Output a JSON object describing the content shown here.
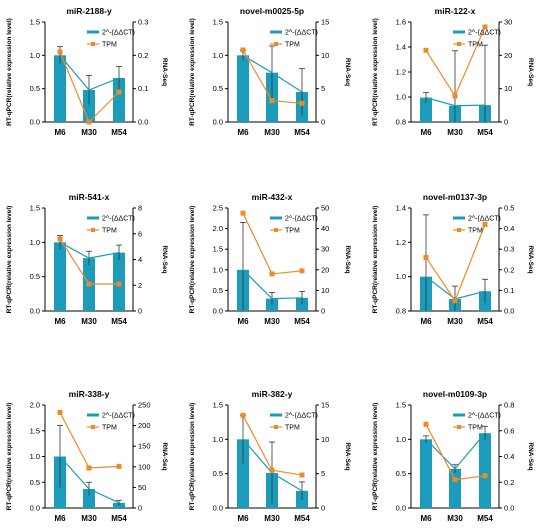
{
  "colors": {
    "bar": "#1a9cba",
    "tpm": "#f08a28",
    "axis": "#000000",
    "error": "#333333"
  },
  "legend": {
    "bar_label": "2^-(ΔΔCT)",
    "line_label": "TPM"
  },
  "chart_data": [
    {
      "type": "bar",
      "title": "miR-2188-y",
      "categories": [
        "M6",
        "M30",
        "M54"
      ],
      "ylabel": "RT-qPCR(relative expression level)",
      "y2label": "RNA-Seq",
      "ylim": [
        0,
        1.5
      ],
      "yticks": [
        0.0,
        0.5,
        1.0,
        1.5
      ],
      "y2lim": [
        0,
        0.3
      ],
      "y2ticks": [
        0.0,
        0.1,
        0.2,
        0.3
      ],
      "legend_position": "top-right",
      "series": [
        {
          "name": "2^-(ΔΔCT)",
          "axis": "left",
          "values": [
            1.0,
            0.48,
            0.66
          ],
          "errors": [
            0.13,
            0.22,
            0.17
          ]
        },
        {
          "name": "TPM",
          "axis": "right",
          "values": [
            0.21,
            0.0,
            0.09
          ]
        }
      ]
    },
    {
      "type": "bar",
      "title": "novel-m0025-5p",
      "categories": [
        "M6",
        "M30",
        "M54"
      ],
      "ylabel": "RT-qPCR(relative expression level)",
      "y2label": "RNA-Seq",
      "ylim": [
        0,
        1.5
      ],
      "yticks": [
        0.0,
        0.5,
        1.0,
        1.5
      ],
      "y2lim": [
        0,
        15
      ],
      "y2ticks": [
        0,
        5,
        10,
        15
      ],
      "legend_position": "top-right",
      "series": [
        {
          "name": "2^-(ΔΔCT)",
          "axis": "left",
          "values": [
            1.0,
            0.74,
            0.45
          ],
          "errors": [
            0.08,
            0.4,
            0.35
          ]
        },
        {
          "name": "TPM",
          "axis": "right",
          "values": [
            10.8,
            3.2,
            2.8
          ]
        }
      ]
    },
    {
      "type": "bar",
      "title": "miR-122-x",
      "categories": [
        "M6",
        "M30",
        "M54"
      ],
      "ylabel": "RT-qPCR(relative expression level)",
      "y2label": "RNA-Seq",
      "ylim": [
        0.8,
        1.6
      ],
      "yticks": [
        0.8,
        1.0,
        1.2,
        1.4,
        1.6
      ],
      "y2lim": [
        0,
        30
      ],
      "y2ticks": [
        0,
        10,
        20,
        30
      ],
      "legend_position": "top-right",
      "series": [
        {
          "name": "2^-(ΔΔCT)",
          "axis": "left",
          "values": [
            0.995,
            0.93,
            0.935
          ],
          "errors": [
            0.04,
            0.44,
            0.48
          ]
        },
        {
          "name": "TPM",
          "axis": "right",
          "values": [
            21.5,
            7.8,
            28.5
          ]
        }
      ]
    },
    {
      "type": "bar",
      "title": "miR-541-x",
      "categories": [
        "M6",
        "M30",
        "M54"
      ],
      "ylabel": "RT-qPCR(relative expression level)",
      "y2label": "RNA-Seq",
      "ylim": [
        0,
        1.5
      ],
      "yticks": [
        0.0,
        0.5,
        1.0,
        1.5
      ],
      "y2lim": [
        0,
        8
      ],
      "y2ticks": [
        0,
        2,
        4,
        6,
        8
      ],
      "legend_position": "top-right",
      "series": [
        {
          "name": "2^-(ΔΔCT)",
          "axis": "left",
          "values": [
            1.0,
            0.77,
            0.85
          ],
          "errors": [
            0.1,
            0.1,
            0.11
          ]
        },
        {
          "name": "TPM",
          "axis": "right",
          "values": [
            5.6,
            2.1,
            2.1
          ]
        }
      ]
    },
    {
      "type": "bar",
      "title": "miR-432-x",
      "categories": [
        "M6",
        "M30",
        "M54"
      ],
      "ylabel": "RT-qPCR(relative expression level)",
      "y2label": "RNA-Seq",
      "ylim": [
        0,
        2.5
      ],
      "yticks": [
        0.0,
        0.5,
        1.0,
        1.5,
        2.0,
        2.5
      ],
      "y2lim": [
        0,
        50
      ],
      "y2ticks": [
        0,
        10,
        20,
        30,
        40,
        50
      ],
      "legend_position": "top-right",
      "series": [
        {
          "name": "2^-(ΔΔCT)",
          "axis": "left",
          "values": [
            1.0,
            0.3,
            0.32
          ],
          "errors": [
            1.15,
            0.15,
            0.15
          ]
        },
        {
          "name": "TPM",
          "axis": "right",
          "values": [
            47.5,
            18.0,
            19.5
          ]
        }
      ]
    },
    {
      "type": "bar",
      "title": "novel-m0137-3p",
      "categories": [
        "M6",
        "M30",
        "M54"
      ],
      "ylabel": "RT-qPCR(relative expression level)",
      "y2label": "RNA-Seq",
      "ylim": [
        0.8,
        1.4
      ],
      "yticks": [
        0.8,
        1.0,
        1.2,
        1.4
      ],
      "y2lim": [
        0,
        0.5
      ],
      "y2ticks": [
        0.0,
        0.1,
        0.2,
        0.3,
        0.4,
        0.5
      ],
      "legend_position": "top-right",
      "series": [
        {
          "name": "2^-(ΔΔCT)",
          "axis": "left",
          "values": [
            1.0,
            0.87,
            0.915
          ],
          "errors": [
            0.36,
            0.075,
            0.07
          ]
        },
        {
          "name": "TPM",
          "axis": "right",
          "values": [
            0.26,
            0.05,
            0.42
          ]
        }
      ]
    },
    {
      "type": "bar",
      "title": "miR-338-y",
      "categories": [
        "M6",
        "M30",
        "M54"
      ],
      "ylabel": "RT-qPCR(relative expression level)",
      "y2label": "RNA-Seq",
      "ylim": [
        0,
        2.0
      ],
      "yticks": [
        0.0,
        0.5,
        1.0,
        1.5,
        2.0
      ],
      "y2lim": [
        0,
        250
      ],
      "y2ticks": [
        0,
        50,
        100,
        150,
        200,
        250
      ],
      "legend_position": "top-right",
      "series": [
        {
          "name": "2^-(ΔΔCT)",
          "axis": "left",
          "values": [
            1.0,
            0.37,
            0.1
          ],
          "errors": [
            0.6,
            0.13,
            0.05
          ]
        },
        {
          "name": "TPM",
          "axis": "right",
          "values": [
            232,
            97,
            101
          ]
        }
      ]
    },
    {
      "type": "bar",
      "title": "miR-382-y",
      "categories": [
        "M6",
        "M30",
        "M54"
      ],
      "ylabel": "RT-qPCR(relative expression level)",
      "y2label": "RNA-Seq",
      "ylim": [
        0,
        1.5
      ],
      "yticks": [
        0.0,
        0.5,
        1.0,
        1.5
      ],
      "y2lim": [
        0,
        15
      ],
      "y2ticks": [
        0,
        5,
        10,
        15
      ],
      "legend_position": "top-right",
      "series": [
        {
          "name": "2^-(ΔΔCT)",
          "axis": "left",
          "values": [
            1.0,
            0.51,
            0.25
          ],
          "errors": [
            0.35,
            0.45,
            0.13
          ]
        },
        {
          "name": "TPM",
          "axis": "right",
          "values": [
            13.5,
            5.5,
            4.8
          ]
        }
      ]
    },
    {
      "type": "bar",
      "title": "novel-m0109-3p",
      "categories": [
        "M6",
        "M30",
        "M54"
      ],
      "ylabel": "RT-qPCR(relative expression level)",
      "y2label": "RNA-Seq",
      "ylim": [
        0,
        1.5
      ],
      "yticks": [
        0.0,
        0.5,
        1.0,
        1.5
      ],
      "y2lim": [
        0,
        0.8
      ],
      "y2ticks": [
        0.0,
        0.2,
        0.4,
        0.6,
        0.8
      ],
      "legend_position": "top-right",
      "series": [
        {
          "name": "2^-(ΔΔCT)",
          "axis": "left",
          "values": [
            1.0,
            0.57,
            1.09
          ],
          "errors": [
            0.05,
            0.06,
            0.1
          ]
        },
        {
          "name": "TPM",
          "axis": "right",
          "values": [
            0.65,
            0.22,
            0.25
          ]
        }
      ]
    }
  ]
}
